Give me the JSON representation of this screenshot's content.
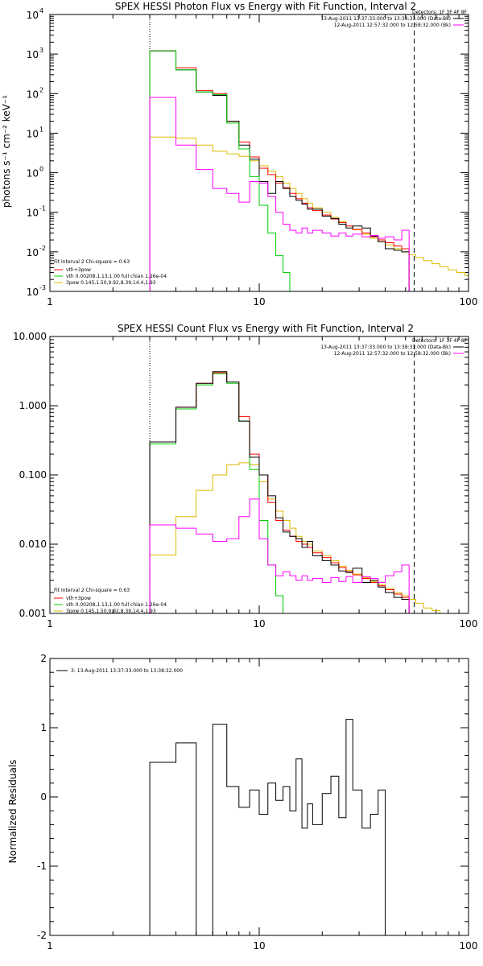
{
  "colors": {
    "black": "#000000",
    "red": "#ff0000",
    "green": "#00cc00",
    "magenta": "#ff00ff",
    "yellow": "#ddbb00"
  },
  "chart_data": [
    {
      "type": "line",
      "title": "SPEX HESSI Photon Flux vs Energy with Fit Function, Interval 2",
      "ylabel": "photons s⁻¹ cm⁻² keV⁻¹",
      "xlabel": "",
      "xscale": "log",
      "yscale": "log",
      "xlim": [
        1,
        100
      ],
      "ylim": [
        0.001,
        10000
      ],
      "xtick_labels": [
        "1",
        "10",
        "100"
      ],
      "ytick_values": [
        0.001,
        0.01,
        0.1,
        1,
        10,
        100,
        1000,
        10000
      ],
      "ytick_labels": [
        {
          "base": "10",
          "exp": "-3"
        },
        {
          "base": "10",
          "exp": "-2"
        },
        {
          "base": "10",
          "exp": "-1"
        },
        {
          "base": "10",
          "exp": "0"
        },
        {
          "base": "10",
          "exp": "1"
        },
        {
          "base": "10",
          "exp": "2"
        },
        {
          "base": "10",
          "exp": "3"
        },
        {
          "base": "10",
          "exp": "4"
        }
      ],
      "vlines": [
        {
          "x": 3,
          "style": "dotted"
        },
        {
          "x": 55,
          "style": "dashed"
        }
      ],
      "legend_header": "Detectors: 1F 3F 4F 8F",
      "legend_right": [
        {
          "label": "13-Aug-2011 13:37:33.000 to 13:38:33.000 (Data-Bk)",
          "color": "#000000"
        },
        {
          "label": "12-Aug-2011 12:57:32.000 to 12:58:32.000 (Bk)",
          "color": "#ff00ff"
        }
      ],
      "legend_left_header": "Fit Interval 2   Chi-square = 0.63",
      "legend_left": [
        {
          "label": "vth+3pow",
          "color": "#ff0000"
        },
        {
          "label": "vth 0.00208,1.13,1.00  full chian 1.26e-04",
          "color": "#00cc00"
        },
        {
          "label": "3pow 0.145,1.50,9.92,8.39,14.4,1.93",
          "color": "#ddbb00"
        }
      ],
      "edges": [
        3,
        4,
        5,
        6,
        7,
        8,
        9,
        10,
        11,
        12,
        13,
        14,
        15,
        16,
        17,
        18,
        20,
        22,
        24,
        26,
        28,
        31,
        34,
        37,
        40,
        44,
        48,
        52,
        56,
        61,
        67,
        73,
        80,
        88,
        96,
        100
      ],
      "series": [
        {
          "key": "yellow",
          "values": [
            8,
            7.5,
            5,
            3.5,
            3,
            2.6,
            2,
            1.5,
            1.1,
            0.8,
            0.55,
            0.4,
            0.3,
            0.22,
            0.17,
            0.13,
            0.1,
            0.075,
            0.058,
            0.045,
            0.036,
            0.028,
            0.022,
            0.018,
            0.015,
            0.012,
            0.01,
            0.0085,
            0.0072,
            0.006,
            0.005,
            0.0042,
            0.0035,
            0.003,
            0.0025
          ]
        },
        {
          "key": "red",
          "values": [
            1200,
            450,
            120,
            100,
            20,
            6,
            2.5,
            1.3,
            0.9,
            0.55,
            0.42,
            0.3,
            0.22,
            0.17,
            0.13,
            0.11,
            0.085,
            0.068,
            0.055,
            0.045,
            0.037,
            0.03,
            0.024,
            0.02,
            0.017,
            0.014,
            0.012
          ]
        },
        {
          "key": "black",
          "values": [
            1200,
            400,
            110,
            90,
            20,
            5,
            2.2,
            0.6,
            0.3,
            0.6,
            0.4,
            0.25,
            0.2,
            0.16,
            0.12,
            0.12,
            0.08,
            0.07,
            0.05,
            0.04,
            0.045,
            0.04,
            0.025,
            0.018,
            0.012,
            0.011,
            0.01
          ]
        },
        {
          "key": "green",
          "values": [
            1200,
            400,
            110,
            95,
            18,
            4,
            0.8,
            0.15,
            0.03,
            0.008,
            0.003,
            0.001
          ]
        },
        {
          "key": "magenta",
          "values": [
            80,
            5,
            1.2,
            0.4,
            0.3,
            0.18,
            0.6,
            0.55,
            0.25,
            0.1,
            0.05,
            0.035,
            0.03,
            0.04,
            0.03,
            0.035,
            0.03,
            0.025,
            0.03,
            0.025,
            0.028,
            0.024,
            0.026,
            0.022,
            0.024,
            0.02,
            0.035
          ]
        }
      ]
    },
    {
      "type": "line",
      "title": "SPEX HESSI Count Flux vs Energy with Fit Function, Interval 2",
      "ylabel": "",
      "xlabel": "",
      "xscale": "log",
      "yscale": "log",
      "xlim": [
        1,
        100
      ],
      "ylim": [
        0.001,
        10
      ],
      "xtick_labels": [
        "1",
        "10",
        "100"
      ],
      "ytick_values": [
        0.001,
        0.01,
        0.1,
        1,
        10
      ],
      "ytick_labels": [
        "0.001",
        "0.010",
        "0.100",
        "1.000",
        "10.000"
      ],
      "vlines": [
        {
          "x": 3,
          "style": "dotted"
        },
        {
          "x": 55,
          "style": "dashed"
        }
      ],
      "legend_header": "Detectors: 1F 3F 4F 8F",
      "legend_right": [
        {
          "label": "13-Aug-2011 13:37:33.000 to 13:38:33.000 (Data-Bk)",
          "color": "#000000"
        },
        {
          "label": "12-Aug-2011 12:57:32.000 to 12:58:32.000 (Bk)",
          "color": "#ff00ff"
        }
      ],
      "legend_left_header": "Fit Interval 2   Chi-square = 0.63",
      "legend_left": [
        {
          "label": "vth+3pow",
          "color": "#ff0000"
        },
        {
          "label": "vth 0.00208,1.13,1.00  full chian 1.26e-04",
          "color": "#00cc00"
        },
        {
          "label": "3pow 0.145,1.50,9.92,8.39,14.4,1.93",
          "color": "#ddbb00"
        }
      ],
      "edges": [
        3,
        4,
        5,
        6,
        7,
        8,
        9,
        10,
        11,
        12,
        13,
        14,
        15,
        16,
        17,
        18,
        20,
        22,
        24,
        26,
        28,
        31,
        34,
        37,
        40,
        44,
        48,
        52,
        56,
        61,
        67,
        73,
        80,
        88
      ],
      "series": [
        {
          "key": "yellow",
          "values": [
            0.007,
            0.025,
            0.06,
            0.1,
            0.14,
            0.15,
            0.14,
            0.08,
            0.045,
            0.03,
            0.022,
            0.017,
            0.013,
            0.011,
            0.01,
            0.008,
            0.0068,
            0.0058,
            0.0048,
            0.0042,
            0.0037,
            0.0033,
            0.0029,
            0.0026,
            0.0023,
            0.002,
            0.0018,
            0.0016,
            0.0014,
            0.0012,
            0.0011,
            0.001,
            0.001
          ]
        },
        {
          "key": "green",
          "values": [
            0.28,
            0.9,
            2,
            2.9,
            2.1,
            0.6,
            0.12,
            0.022,
            0.005,
            0.0018,
            0.001,
            0.001
          ]
        },
        {
          "key": "red",
          "values": [
            0.3,
            0.95,
            2.1,
            3,
            2.2,
            0.7,
            0.2,
            0.1,
            0.04,
            0.022,
            0.016,
            0.013,
            0.011,
            0.01,
            0.009,
            0.0075,
            0.0064,
            0.0054,
            0.0046,
            0.004,
            0.0036,
            0.0032,
            0.0028,
            0.0025,
            0.0022,
            0.0019,
            0.0017
          ]
        },
        {
          "key": "black",
          "values": [
            0.3,
            0.95,
            2.1,
            3.1,
            2.2,
            0.6,
            0.18,
            0.1,
            0.05,
            0.024,
            0.015,
            0.013,
            0.012,
            0.009,
            0.011,
            0.0068,
            0.0058,
            0.005,
            0.0041,
            0.0039,
            0.0045,
            0.0028,
            0.003,
            0.0024,
            0.002,
            0.0017,
            0.0016
          ]
        },
        {
          "key": "magenta",
          "values": [
            0.019,
            0.017,
            0.014,
            0.011,
            0.012,
            0.025,
            0.045,
            0.012,
            0.005,
            0.0035,
            0.004,
            0.0035,
            0.003,
            0.0035,
            0.003,
            0.0032,
            0.0028,
            0.0033,
            0.0029,
            0.0034,
            0.0028,
            0.0034,
            0.0032,
            0.0028,
            0.0035,
            0.004,
            0.005
          ]
        }
      ]
    },
    {
      "type": "line",
      "title": "",
      "ylabel": "Normalized Residuals",
      "xlabel": "",
      "xscale": "log",
      "yscale": "linear",
      "xlim": [
        1,
        100
      ],
      "ylim": [
        -2,
        2
      ],
      "xtick_labels": [
        "1",
        "10",
        "100"
      ],
      "ytick_values": [
        -2,
        -1,
        0,
        1,
        2
      ],
      "ytick_labels": [
        "-2",
        "-1",
        "0",
        "1",
        "2"
      ],
      "legend_left": [
        {
          "label": "3: 13-Aug-2011 13:37:33.000 to 13:38:32.000",
          "color": "#000000"
        }
      ],
      "edges": [
        3,
        4,
        5,
        6,
        7,
        8,
        9,
        10,
        11,
        12,
        13,
        14,
        15,
        16,
        17,
        18,
        20,
        22,
        24,
        26,
        28,
        31,
        34,
        37,
        40,
        44,
        48,
        52,
        56
      ],
      "series": [
        {
          "key": "black",
          "values": [
            0.5,
            0.78,
            -2.05,
            1.05,
            0.15,
            -0.15,
            0.1,
            -0.25,
            0.2,
            -0.05,
            0.15,
            -0.2,
            0.55,
            -0.45,
            -0.1,
            -0.4,
            0.05,
            0.3,
            -0.3,
            1.12,
            0.1,
            -0.45,
            -0.25,
            0.1
          ]
        }
      ]
    }
  ]
}
